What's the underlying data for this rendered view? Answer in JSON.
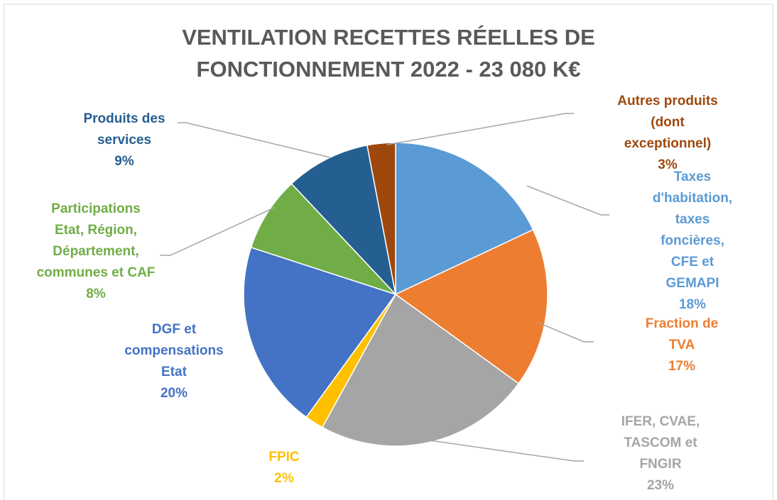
{
  "chart_data": {
    "type": "pie",
    "title": "VENTILATION RECETTES RÉELLES DE\nFONCTIONNEMENT 2022 - 23 080 K€",
    "categories": [
      "Taxes d'habitation,\ntaxes foncières, CFE et\nGEMAPI",
      "Fraction de TVA",
      "IFER, CVAE,\nTASCOM et FNGIR",
      "FPIC",
      "DGF et\ncompensations\nEtat",
      "Participations\nEtat, Région,\nDépartement,\ncommunes et CAF",
      "Produits des\nservices",
      "Autres produits (dont\nexceptionnel)"
    ],
    "values": [
      18,
      17,
      23,
      2,
      20,
      8,
      9,
      3
    ],
    "value_labels": [
      "18%",
      "17%",
      "23%",
      "2%",
      "20%",
      "8%",
      "9%",
      "3%"
    ],
    "colors": [
      "#5b9bd5",
      "#ed7d31",
      "#a5a5a5",
      "#ffc000",
      "#4472c4",
      "#70ad47",
      "#255e91",
      "#9e480e"
    ]
  }
}
